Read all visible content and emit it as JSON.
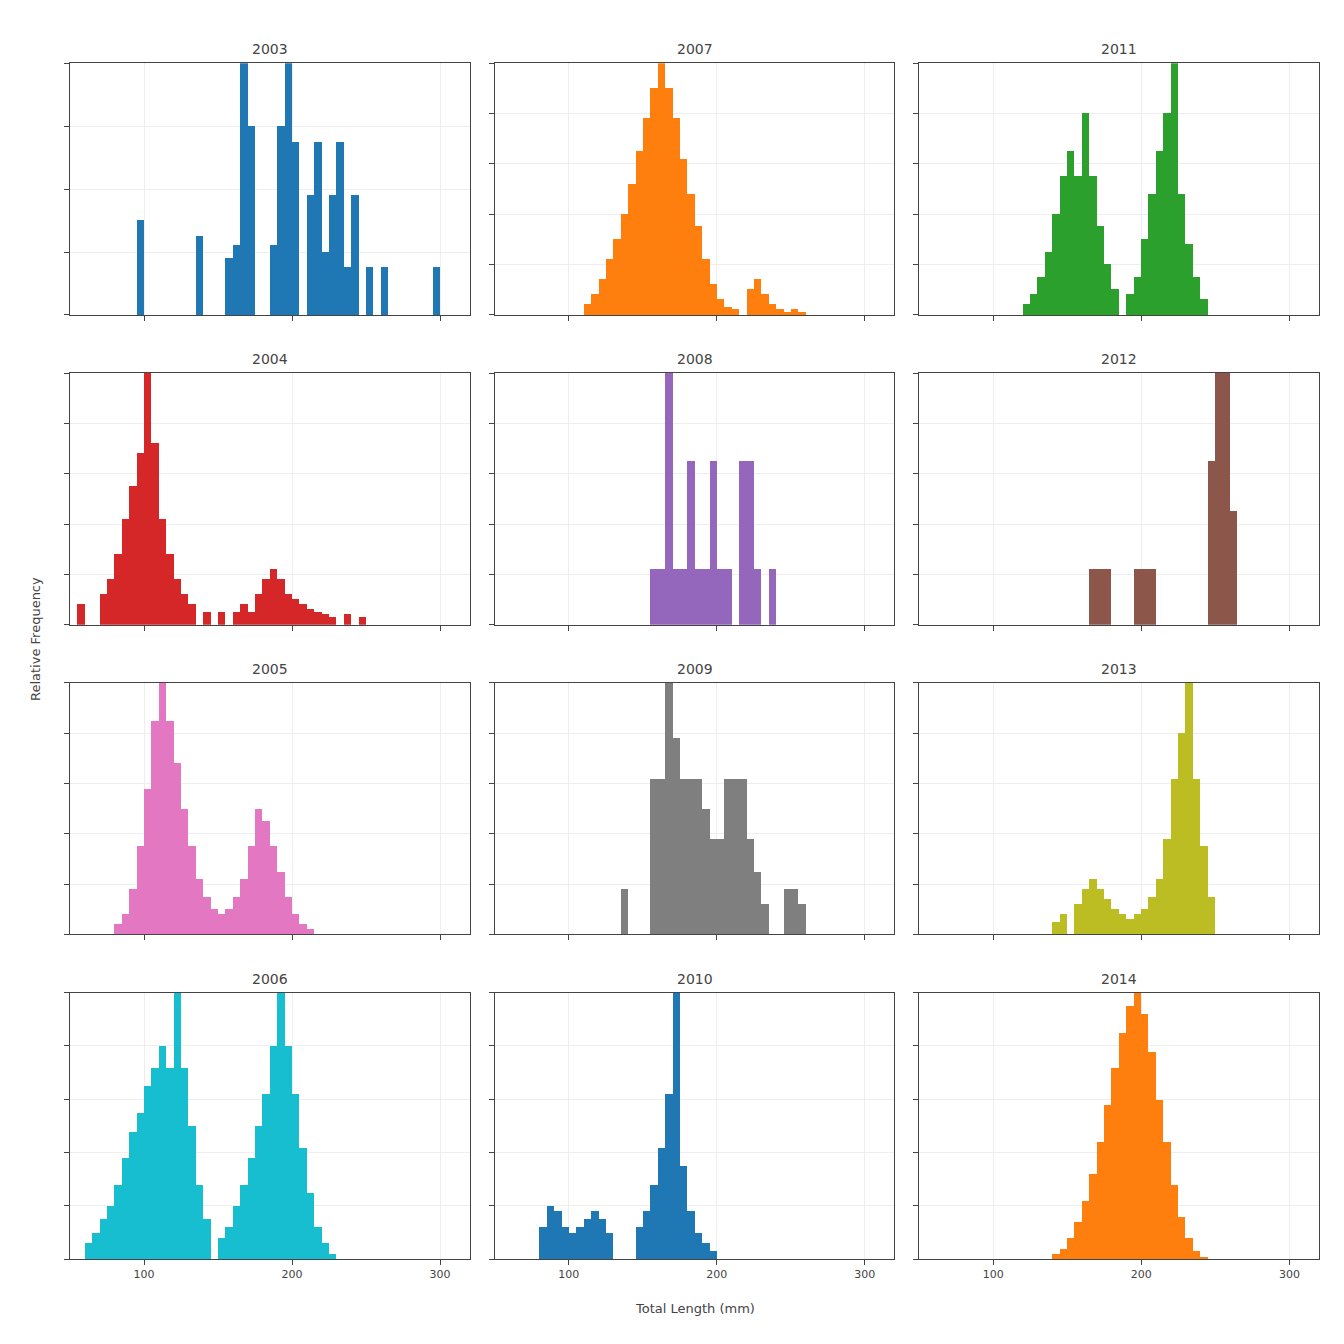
{
  "chart_data": [
    {
      "type": "bar",
      "title": "2003",
      "x": [
        95,
        135,
        155,
        160,
        165,
        170,
        185,
        190,
        195,
        200,
        210,
        215,
        220,
        225,
        230,
        235,
        240,
        250,
        260,
        295
      ],
      "values": [
        0.3,
        0.25,
        0.18,
        0.22,
        0.8,
        0.6,
        0.22,
        0.6,
        0.8,
        0.55,
        0.38,
        0.55,
        0.2,
        0.38,
        0.55,
        0.15,
        0.38,
        0.15,
        0.15,
        0.15
      ],
      "bin_width": 5,
      "xlim": [
        50,
        320
      ],
      "xticks": [
        100,
        200,
        300
      ],
      "ylim": [
        0,
        0.8
      ],
      "yticks": [
        0,
        0.2,
        0.4,
        0.6,
        0.8
      ],
      "grid": true,
      "tick_labels": false
    },
    {
      "type": "bar",
      "title": "2007",
      "x": [
        110,
        115,
        120,
        125,
        130,
        135,
        140,
        145,
        150,
        155,
        160,
        165,
        170,
        175,
        180,
        185,
        190,
        195,
        200,
        205,
        210,
        220,
        225,
        230,
        235,
        240,
        245,
        250,
        255
      ],
      "values": [
        0.04,
        0.08,
        0.14,
        0.22,
        0.3,
        0.4,
        0.52,
        0.65,
        0.78,
        0.9,
        1.0,
        0.9,
        0.78,
        0.62,
        0.48,
        0.35,
        0.22,
        0.12,
        0.06,
        0.03,
        0.02,
        0.1,
        0.14,
        0.08,
        0.04,
        0.02,
        0.01,
        0.02,
        0.01
      ],
      "bin_width": 5,
      "xlim": [
        50,
        320
      ],
      "xticks": [
        100,
        200,
        300
      ],
      "ylim": [
        0,
        1
      ],
      "yticks": [
        0,
        0.2,
        0.4,
        0.6,
        0.8,
        1
      ],
      "grid": true,
      "tick_labels": false
    },
    {
      "type": "bar",
      "title": "2011",
      "x": [
        120,
        125,
        130,
        135,
        140,
        145,
        150,
        155,
        160,
        165,
        170,
        175,
        180,
        190,
        195,
        200,
        205,
        210,
        215,
        220,
        225,
        230,
        235,
        240
      ],
      "values": [
        0.04,
        0.08,
        0.15,
        0.25,
        0.4,
        0.55,
        0.65,
        0.55,
        0.8,
        0.55,
        0.35,
        0.2,
        0.1,
        0.08,
        0.15,
        0.3,
        0.48,
        0.65,
        0.8,
        1.0,
        0.48,
        0.28,
        0.15,
        0.06
      ],
      "bin_width": 5,
      "xlim": [
        50,
        320
      ],
      "xticks": [
        100,
        200,
        300
      ],
      "ylim": [
        0,
        1
      ],
      "yticks": [
        0,
        0.2,
        0.4,
        0.6,
        0.8,
        1
      ],
      "grid": true,
      "tick_labels": false
    },
    {
      "type": "bar",
      "title": "2004",
      "ylabel": "Relative Frequency",
      "x": [
        55,
        70,
        75,
        80,
        85,
        90,
        95,
        100,
        105,
        110,
        115,
        120,
        125,
        130,
        140,
        150,
        160,
        165,
        170,
        175,
        180,
        185,
        190,
        195,
        200,
        205,
        210,
        215,
        220,
        225,
        235,
        245
      ],
      "values": [
        0.08,
        0.12,
        0.18,
        0.28,
        0.42,
        0.55,
        0.68,
        1.0,
        0.72,
        0.42,
        0.28,
        0.18,
        0.12,
        0.08,
        0.05,
        0.05,
        0.05,
        0.08,
        0.05,
        0.12,
        0.18,
        0.22,
        0.18,
        0.12,
        0.1,
        0.08,
        0.06,
        0.05,
        0.04,
        0.03,
        0.04,
        0.03
      ],
      "bin_width": 5,
      "xlim": [
        50,
        320
      ],
      "xticks": [
        100,
        200,
        300
      ],
      "ylim": [
        0,
        1
      ],
      "yticks": [
        0,
        0.2,
        0.4,
        0.6,
        0.8,
        1
      ],
      "grid": true,
      "tick_labels": false
    },
    {
      "type": "bar",
      "title": "2008",
      "x": [
        155,
        160,
        165,
        170,
        175,
        180,
        185,
        190,
        195,
        200,
        205,
        215,
        220,
        225,
        235
      ],
      "values": [
        0.22,
        0.22,
        1.0,
        0.22,
        0.22,
        0.65,
        0.22,
        0.22,
        0.65,
        0.22,
        0.22,
        0.65,
        0.65,
        0.22,
        0.22
      ],
      "bin_width": 5,
      "xlim": [
        50,
        320
      ],
      "xticks": [
        100,
        200,
        300
      ],
      "ylim": [
        0,
        1
      ],
      "yticks": [
        0,
        0.2,
        0.4,
        0.6,
        0.8,
        1
      ],
      "grid": true,
      "tick_labels": false
    },
    {
      "type": "bar",
      "title": "2012",
      "x": [
        165,
        170,
        175,
        195,
        200,
        205,
        245,
        250,
        255,
        260
      ],
      "values": [
        0.22,
        0.22,
        0.22,
        0.22,
        0.22,
        0.22,
        0.65,
        1.0,
        1.0,
        0.45
      ],
      "bin_width": 5,
      "xlim": [
        50,
        320
      ],
      "xticks": [
        100,
        200,
        300
      ],
      "ylim": [
        0,
        1
      ],
      "yticks": [
        0,
        0.2,
        0.4,
        0.6,
        0.8,
        1
      ],
      "grid": true,
      "tick_labels": false
    },
    {
      "type": "bar",
      "title": "2005",
      "x": [
        80,
        85,
        90,
        95,
        100,
        105,
        110,
        115,
        120,
        125,
        130,
        135,
        140,
        145,
        150,
        155,
        160,
        165,
        170,
        175,
        180,
        185,
        190,
        195,
        200,
        205,
        210
      ],
      "values": [
        0.04,
        0.08,
        0.18,
        0.35,
        0.58,
        0.85,
        1.0,
        0.85,
        0.68,
        0.5,
        0.35,
        0.22,
        0.15,
        0.1,
        0.08,
        0.1,
        0.15,
        0.22,
        0.35,
        0.5,
        0.45,
        0.35,
        0.25,
        0.15,
        0.08,
        0.04,
        0.02
      ],
      "bin_width": 5,
      "xlim": [
        50,
        320
      ],
      "xticks": [
        100,
        200,
        300
      ],
      "ylim": [
        0,
        1
      ],
      "yticks": [
        0,
        0.2,
        0.4,
        0.6,
        0.8,
        1
      ],
      "grid": true,
      "tick_labels": false
    },
    {
      "type": "bar",
      "title": "2009",
      "x": [
        135,
        155,
        160,
        165,
        170,
        175,
        180,
        185,
        190,
        195,
        200,
        205,
        210,
        215,
        220,
        225,
        230,
        245,
        250,
        255
      ],
      "values": [
        0.18,
        0.62,
        0.62,
        1.0,
        0.78,
        0.62,
        0.62,
        0.62,
        0.5,
        0.38,
        0.38,
        0.62,
        0.62,
        0.62,
        0.38,
        0.25,
        0.12,
        0.18,
        0.18,
        0.12
      ],
      "bin_width": 5,
      "xlim": [
        50,
        320
      ],
      "xticks": [
        100,
        200,
        300
      ],
      "ylim": [
        0,
        1
      ],
      "yticks": [
        0,
        0.2,
        0.4,
        0.6,
        0.8,
        1
      ],
      "grid": true,
      "tick_labels": false
    },
    {
      "type": "bar",
      "title": "2013",
      "x": [
        140,
        145,
        155,
        160,
        165,
        170,
        175,
        180,
        185,
        190,
        195,
        200,
        205,
        210,
        215,
        220,
        225,
        230,
        235,
        240,
        245
      ],
      "values": [
        0.05,
        0.08,
        0.12,
        0.18,
        0.22,
        0.18,
        0.14,
        0.1,
        0.08,
        0.06,
        0.08,
        0.1,
        0.15,
        0.22,
        0.38,
        0.62,
        0.8,
        1.0,
        0.62,
        0.35,
        0.15
      ],
      "bin_width": 5,
      "xlim": [
        50,
        320
      ],
      "xticks": [
        100,
        200,
        300
      ],
      "ylim": [
        0,
        1
      ],
      "yticks": [
        0,
        0.2,
        0.4,
        0.6,
        0.8,
        1
      ],
      "grid": true,
      "tick_labels": false
    },
    {
      "type": "bar",
      "title": "2006",
      "x": [
        60,
        65,
        70,
        75,
        80,
        85,
        90,
        95,
        100,
        105,
        110,
        115,
        120,
        125,
        130,
        135,
        140,
        150,
        155,
        160,
        165,
        170,
        175,
        180,
        185,
        190,
        195,
        200,
        205,
        210,
        215,
        220,
        225
      ],
      "values": [
        0.06,
        0.1,
        0.15,
        0.2,
        0.28,
        0.38,
        0.48,
        0.55,
        0.65,
        0.72,
        0.8,
        0.72,
        1.0,
        0.72,
        0.5,
        0.28,
        0.15,
        0.08,
        0.12,
        0.2,
        0.28,
        0.38,
        0.5,
        0.62,
        0.8,
        1.0,
        0.8,
        0.62,
        0.42,
        0.25,
        0.12,
        0.06,
        0.02
      ],
      "bin_width": 5,
      "xlim": [
        50,
        320
      ],
      "xticks": [
        100,
        200,
        300
      ],
      "ylim": [
        0,
        1
      ],
      "yticks": [
        0,
        0.2,
        0.4,
        0.6,
        0.8,
        1
      ],
      "grid": true,
      "tick_labels": "x"
    },
    {
      "type": "bar",
      "title": "2010",
      "xlabel": "Total Length (mm)",
      "x": [
        80,
        85,
        90,
        95,
        100,
        105,
        110,
        115,
        120,
        125,
        145,
        150,
        155,
        160,
        165,
        170,
        175,
        180,
        185,
        190,
        195
      ],
      "values": [
        0.12,
        0.2,
        0.18,
        0.12,
        0.1,
        0.12,
        0.15,
        0.18,
        0.15,
        0.1,
        0.12,
        0.18,
        0.28,
        0.42,
        0.62,
        1.0,
        0.35,
        0.18,
        0.1,
        0.06,
        0.03
      ],
      "bin_width": 5,
      "xlim": [
        50,
        320
      ],
      "xticks": [
        100,
        200,
        300
      ],
      "ylim": [
        0,
        1
      ],
      "yticks": [
        0,
        0.2,
        0.4,
        0.6,
        0.8,
        1
      ],
      "grid": true,
      "tick_labels": "x"
    },
    {
      "type": "bar",
      "title": "2014",
      "x": [
        140,
        145,
        150,
        155,
        160,
        165,
        170,
        175,
        180,
        185,
        190,
        195,
        200,
        205,
        210,
        215,
        220,
        225,
        230,
        235,
        240
      ],
      "values": [
        0.02,
        0.04,
        0.08,
        0.14,
        0.22,
        0.32,
        0.44,
        0.58,
        0.72,
        0.85,
        0.95,
        1.0,
        0.92,
        0.78,
        0.6,
        0.44,
        0.28,
        0.16,
        0.08,
        0.03,
        0.01
      ],
      "bin_width": 5,
      "xlim": [
        50,
        320
      ],
      "xticks": [
        100,
        200,
        300
      ],
      "ylim": [
        0,
        1
      ],
      "yticks": [
        0,
        0.2,
        0.4,
        0.6,
        0.8,
        1
      ],
      "grid": true,
      "tick_labels": "x"
    }
  ]
}
